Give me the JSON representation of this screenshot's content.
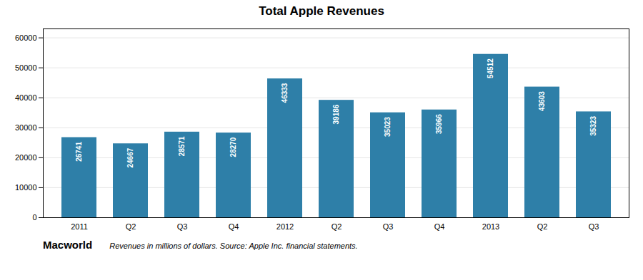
{
  "chart_data": {
    "type": "bar",
    "title": "Total Apple Revenues",
    "categories": [
      "2011",
      "Q2",
      "Q3",
      "Q4",
      "2012",
      "Q2",
      "Q3",
      "Q4",
      "2013",
      "Q2",
      "Q3"
    ],
    "values": [
      26741,
      24667,
      28571,
      28270,
      46333,
      39186,
      35023,
      35966,
      54512,
      43603,
      35323
    ],
    "color": "#2e7fa8",
    "ylim": [
      0,
      63000
    ],
    "yticks": [
      0,
      10000,
      20000,
      30000,
      40000,
      50000,
      60000
    ],
    "grid": true,
    "data_labels": true,
    "annotations": [
      "Macworld",
      "Revenues in millions of dollars. Source: Apple Inc. financial statements."
    ]
  }
}
